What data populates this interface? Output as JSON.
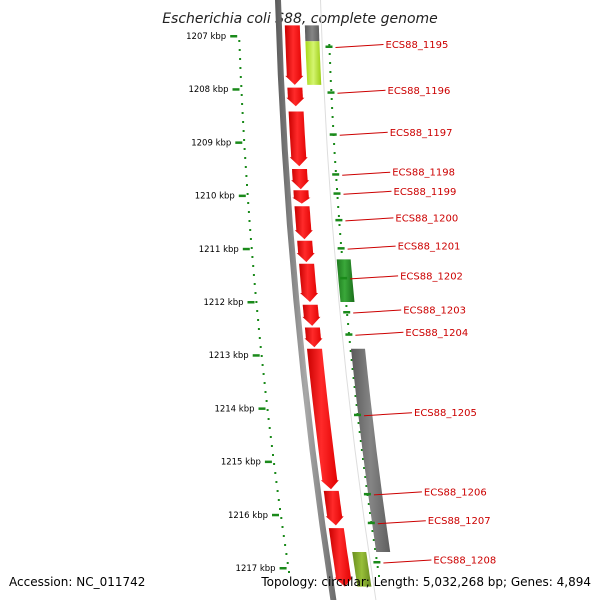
{
  "title": "Escherichia coli S88, complete genome",
  "footer": {
    "accession": "Accession: NC_011742",
    "topology": "Topology: circular; Length: 5,032,268 bp; Genes: 4,894"
  },
  "colors": {
    "forward_cds": "#ff0000",
    "reverse_cds": "#228b22",
    "lightgreen": "#b5e61d",
    "olive": "#7fa626",
    "gray": "#6e6e6e",
    "label": "#cc0000",
    "tick": "#1a8a1a"
  },
  "kbp_ticks": [
    {
      "kbp": 1207,
      "label": "1207 kbp"
    },
    {
      "kbp": 1208,
      "label": "1208 kbp"
    },
    {
      "kbp": 1209,
      "label": "1209 kbp"
    },
    {
      "kbp": 1210,
      "label": "1210 kbp"
    },
    {
      "kbp": 1211,
      "label": "1211 kbp"
    },
    {
      "kbp": 1212,
      "label": "1212 kbp"
    },
    {
      "kbp": 1213,
      "label": "1213 kbp"
    },
    {
      "kbp": 1214,
      "label": "1214 kbp"
    },
    {
      "kbp": 1215,
      "label": "1215 kbp"
    },
    {
      "kbp": 1216,
      "label": "1216 kbp"
    },
    {
      "kbp": 1217,
      "label": "1217 kbp"
    }
  ],
  "gene_labels": [
    {
      "name": "ECS88_1195",
      "pos_kbp": 1207.16
    },
    {
      "name": "ECS88_1196",
      "pos_kbp": 1208.02
    },
    {
      "name": "ECS88_1197",
      "pos_kbp": 1208.81
    },
    {
      "name": "ECS88_1198",
      "pos_kbp": 1209.56
    },
    {
      "name": "ECS88_1199",
      "pos_kbp": 1209.92
    },
    {
      "name": "ECS88_1200",
      "pos_kbp": 1210.42
    },
    {
      "name": "ECS88_1201",
      "pos_kbp": 1210.95
    },
    {
      "name": "ECS88_1202",
      "pos_kbp": 1211.51
    },
    {
      "name": "ECS88_1203",
      "pos_kbp": 1212.15
    },
    {
      "name": "ECS88_1204",
      "pos_kbp": 1212.57
    },
    {
      "name": "ECS88_1205",
      "pos_kbp": 1214.08
    },
    {
      "name": "ECS88_1206",
      "pos_kbp": 1215.57
    },
    {
      "name": "ECS88_1207",
      "pos_kbp": 1216.11
    },
    {
      "name": "ECS88_1208",
      "pos_kbp": 1216.85
    }
  ],
  "forward_genes": [
    {
      "start_kbp": 1206.8,
      "end_kbp": 1207.92,
      "color": "red"
    },
    {
      "start_kbp": 1207.97,
      "end_kbp": 1208.32,
      "color": "red"
    },
    {
      "start_kbp": 1208.42,
      "end_kbp": 1209.45,
      "color": "red"
    },
    {
      "start_kbp": 1209.5,
      "end_kbp": 1209.88,
      "color": "red"
    },
    {
      "start_kbp": 1209.9,
      "end_kbp": 1210.15,
      "color": "red"
    },
    {
      "start_kbp": 1210.2,
      "end_kbp": 1210.82,
      "color": "red"
    },
    {
      "start_kbp": 1210.85,
      "end_kbp": 1211.25,
      "color": "red"
    },
    {
      "start_kbp": 1211.28,
      "end_kbp": 1212.0,
      "color": "red"
    },
    {
      "start_kbp": 1212.05,
      "end_kbp": 1212.45,
      "color": "red"
    },
    {
      "start_kbp": 1212.48,
      "end_kbp": 1212.85,
      "color": "red"
    },
    {
      "start_kbp": 1212.88,
      "end_kbp": 1215.52,
      "color": "red"
    },
    {
      "start_kbp": 1215.55,
      "end_kbp": 1216.2,
      "color": "red"
    },
    {
      "start_kbp": 1216.25,
      "end_kbp": 1217.35,
      "color": "red"
    }
  ],
  "reverse_genes": [
    {
      "start_kbp": 1211.2,
      "end_kbp": 1212.0,
      "color": "forest"
    }
  ],
  "annotation_track": [
    {
      "start_kbp": 1206.8,
      "end_kbp": 1207.1,
      "color": "gray"
    },
    {
      "start_kbp": 1207.1,
      "end_kbp": 1207.92,
      "color": "lightgreen"
    },
    {
      "start_kbp": 1212.88,
      "end_kbp": 1216.7,
      "color": "gray"
    },
    {
      "start_kbp": 1216.7,
      "end_kbp": 1217.35,
      "color": "olive"
    }
  ]
}
